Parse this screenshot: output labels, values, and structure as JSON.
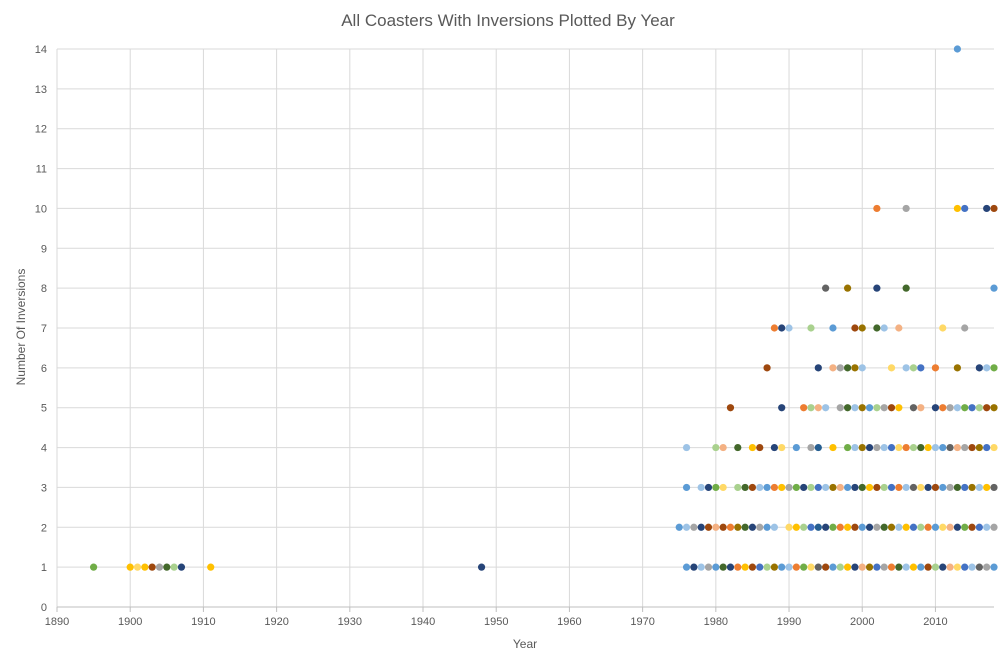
{
  "chart_data": {
    "type": "scatter",
    "title": "All Coasters With Inversions Plotted By Year",
    "xlabel": "Year",
    "ylabel": "Number Of Inversions",
    "xlim": [
      1890,
      2018
    ],
    "ylim": [
      0,
      14
    ],
    "x_ticks": [
      "1890",
      "1900",
      "1910",
      "1920",
      "1930",
      "1940",
      "1950",
      "1960",
      "1970",
      "1980",
      "1990",
      "2000",
      "2010"
    ],
    "y_ticks": [
      "0",
      "1",
      "2",
      "3",
      "4",
      "5",
      "6",
      "7",
      "8",
      "9",
      "10",
      "11",
      "12",
      "13",
      "14"
    ],
    "grid": true,
    "legend": "none",
    "palette": [
      "#5B9BD5",
      "#ED7D31",
      "#A5A5A5",
      "#FFC000",
      "#4472C4",
      "#70AD47",
      "#264478",
      "#9E480E",
      "#636363",
      "#997300",
      "#255E91",
      "#43682B",
      "#9DC3E6",
      "#F4B183",
      "#A9D18E",
      "#FFD966"
    ],
    "points": [
      {
        "x": 1895,
        "y": 1,
        "c": "#70AD47"
      },
      {
        "x": 1900,
        "y": 1,
        "c": "#FFC000"
      },
      {
        "x": 1901,
        "y": 1,
        "c": "#FFD966"
      },
      {
        "x": 1902,
        "y": 1,
        "c": "#FFC000"
      },
      {
        "x": 1903,
        "y": 1,
        "c": "#9E480E"
      },
      {
        "x": 1904,
        "y": 1,
        "c": "#A5A5A5"
      },
      {
        "x": 1905,
        "y": 1,
        "c": "#43682B"
      },
      {
        "x": 1906,
        "y": 1,
        "c": "#A9D18E"
      },
      {
        "x": 1907,
        "y": 1,
        "c": "#264478"
      },
      {
        "x": 1911,
        "y": 1,
        "c": "#FFC000"
      },
      {
        "x": 1948,
        "y": 1,
        "c": "#264478"
      },
      {
        "x": 1976,
        "y": 1,
        "c": "#5B9BD5"
      },
      {
        "x": 1977,
        "y": 1,
        "c": "#264478"
      },
      {
        "x": 1978,
        "y": 1,
        "c": "#9DC3E6"
      },
      {
        "x": 1979,
        "y": 1,
        "c": "#A5A5A5"
      },
      {
        "x": 1980,
        "y": 1,
        "c": "#5B9BD5"
      },
      {
        "x": 1981,
        "y": 1,
        "c": "#43682B"
      },
      {
        "x": 1982,
        "y": 1,
        "c": "#264478"
      },
      {
        "x": 1983,
        "y": 1,
        "c": "#ED7D31"
      },
      {
        "x": 1984,
        "y": 1,
        "c": "#FFC000"
      },
      {
        "x": 1985,
        "y": 1,
        "c": "#9E480E"
      },
      {
        "x": 1986,
        "y": 1,
        "c": "#4472C4"
      },
      {
        "x": 1987,
        "y": 1,
        "c": "#A9D18E"
      },
      {
        "x": 1988,
        "y": 1,
        "c": "#997300"
      },
      {
        "x": 1989,
        "y": 1,
        "c": "#5B9BD5"
      },
      {
        "x": 1990,
        "y": 1,
        "c": "#9DC3E6"
      },
      {
        "x": 1991,
        "y": 1,
        "c": "#ED7D31"
      },
      {
        "x": 1992,
        "y": 1,
        "c": "#70AD47"
      },
      {
        "x": 1993,
        "y": 1,
        "c": "#FFD966"
      },
      {
        "x": 1994,
        "y": 1,
        "c": "#636363"
      },
      {
        "x": 1995,
        "y": 1,
        "c": "#9E480E"
      },
      {
        "x": 1996,
        "y": 1,
        "c": "#5B9BD5"
      },
      {
        "x": 1997,
        "y": 1,
        "c": "#A9D18E"
      },
      {
        "x": 1998,
        "y": 1,
        "c": "#FFC000"
      },
      {
        "x": 1999,
        "y": 1,
        "c": "#264478"
      },
      {
        "x": 2000,
        "y": 1,
        "c": "#F4B183"
      },
      {
        "x": 2001,
        "y": 1,
        "c": "#997300"
      },
      {
        "x": 2002,
        "y": 1,
        "c": "#4472C4"
      },
      {
        "x": 2003,
        "y": 1,
        "c": "#A5A5A5"
      },
      {
        "x": 2004,
        "y": 1,
        "c": "#ED7D31"
      },
      {
        "x": 2005,
        "y": 1,
        "c": "#43682B"
      },
      {
        "x": 2006,
        "y": 1,
        "c": "#9DC3E6"
      },
      {
        "x": 2007,
        "y": 1,
        "c": "#FFC000"
      },
      {
        "x": 2008,
        "y": 1,
        "c": "#5B9BD5"
      },
      {
        "x": 2009,
        "y": 1,
        "c": "#9E480E"
      },
      {
        "x": 2010,
        "y": 1,
        "c": "#A9D18E"
      },
      {
        "x": 2011,
        "y": 1,
        "c": "#264478"
      },
      {
        "x": 2012,
        "y": 1,
        "c": "#F4B183"
      },
      {
        "x": 2013,
        "y": 1,
        "c": "#FFD966"
      },
      {
        "x": 2014,
        "y": 1,
        "c": "#4472C4"
      },
      {
        "x": 2015,
        "y": 1,
        "c": "#9DC3E6"
      },
      {
        "x": 2016,
        "y": 1,
        "c": "#636363"
      },
      {
        "x": 2017,
        "y": 1,
        "c": "#A5A5A5"
      },
      {
        "x": 2018,
        "y": 1,
        "c": "#5B9BD5"
      },
      {
        "x": 1975,
        "y": 2,
        "c": "#5B9BD5"
      },
      {
        "x": 1976,
        "y": 2,
        "c": "#9DC3E6"
      },
      {
        "x": 1977,
        "y": 2,
        "c": "#A5A5A5"
      },
      {
        "x": 1978,
        "y": 2,
        "c": "#264478"
      },
      {
        "x": 1979,
        "y": 2,
        "c": "#9E480E"
      },
      {
        "x": 1980,
        "y": 2,
        "c": "#F4B183"
      },
      {
        "x": 1981,
        "y": 2,
        "c": "#9E480E"
      },
      {
        "x": 1982,
        "y": 2,
        "c": "#ED7D31"
      },
      {
        "x": 1983,
        "y": 2,
        "c": "#997300"
      },
      {
        "x": 1984,
        "y": 2,
        "c": "#43682B"
      },
      {
        "x": 1985,
        "y": 2,
        "c": "#264478"
      },
      {
        "x": 1986,
        "y": 2,
        "c": "#A5A5A5"
      },
      {
        "x": 1987,
        "y": 2,
        "c": "#5B9BD5"
      },
      {
        "x": 1988,
        "y": 2,
        "c": "#9DC3E6"
      },
      {
        "x": 1990,
        "y": 2,
        "c": "#FFD966"
      },
      {
        "x": 1991,
        "y": 2,
        "c": "#FFC000"
      },
      {
        "x": 1992,
        "y": 2,
        "c": "#A9D18E"
      },
      {
        "x": 1993,
        "y": 2,
        "c": "#4472C4"
      },
      {
        "x": 1994,
        "y": 2,
        "c": "#255E91"
      },
      {
        "x": 1995,
        "y": 2,
        "c": "#264478"
      },
      {
        "x": 1996,
        "y": 2,
        "c": "#70AD47"
      },
      {
        "x": 1997,
        "y": 2,
        "c": "#ED7D31"
      },
      {
        "x": 1998,
        "y": 2,
        "c": "#FFC000"
      },
      {
        "x": 1999,
        "y": 2,
        "c": "#9E480E"
      },
      {
        "x": 2000,
        "y": 2,
        "c": "#5B9BD5"
      },
      {
        "x": 2001,
        "y": 2,
        "c": "#264478"
      },
      {
        "x": 2002,
        "y": 2,
        "c": "#A5A5A5"
      },
      {
        "x": 2003,
        "y": 2,
        "c": "#43682B"
      },
      {
        "x": 2004,
        "y": 2,
        "c": "#997300"
      },
      {
        "x": 2005,
        "y": 2,
        "c": "#9DC3E6"
      },
      {
        "x": 2006,
        "y": 2,
        "c": "#FFC000"
      },
      {
        "x": 2007,
        "y": 2,
        "c": "#4472C4"
      },
      {
        "x": 2008,
        "y": 2,
        "c": "#A9D18E"
      },
      {
        "x": 2009,
        "y": 2,
        "c": "#ED7D31"
      },
      {
        "x": 2010,
        "y": 2,
        "c": "#5B9BD5"
      },
      {
        "x": 2011,
        "y": 2,
        "c": "#FFD966"
      },
      {
        "x": 2012,
        "y": 2,
        "c": "#F4B183"
      },
      {
        "x": 2013,
        "y": 2,
        "c": "#264478"
      },
      {
        "x": 2014,
        "y": 2,
        "c": "#70AD47"
      },
      {
        "x": 2015,
        "y": 2,
        "c": "#9E480E"
      },
      {
        "x": 2016,
        "y": 2,
        "c": "#4472C4"
      },
      {
        "x": 2017,
        "y": 2,
        "c": "#9DC3E6"
      },
      {
        "x": 2018,
        "y": 2,
        "c": "#A5A5A5"
      },
      {
        "x": 1976,
        "y": 3,
        "c": "#5B9BD5"
      },
      {
        "x": 1978,
        "y": 3,
        "c": "#9DC3E6"
      },
      {
        "x": 1979,
        "y": 3,
        "c": "#264478"
      },
      {
        "x": 1980,
        "y": 3,
        "c": "#70AD47"
      },
      {
        "x": 1981,
        "y": 3,
        "c": "#FFD966"
      },
      {
        "x": 1983,
        "y": 3,
        "c": "#A9D18E"
      },
      {
        "x": 1984,
        "y": 3,
        "c": "#43682B"
      },
      {
        "x": 1985,
        "y": 3,
        "c": "#9E480E"
      },
      {
        "x": 1986,
        "y": 3,
        "c": "#9DC3E6"
      },
      {
        "x": 1987,
        "y": 3,
        "c": "#5B9BD5"
      },
      {
        "x": 1988,
        "y": 3,
        "c": "#ED7D31"
      },
      {
        "x": 1989,
        "y": 3,
        "c": "#FFC000"
      },
      {
        "x": 1990,
        "y": 3,
        "c": "#A5A5A5"
      },
      {
        "x": 1991,
        "y": 3,
        "c": "#70AD47"
      },
      {
        "x": 1992,
        "y": 3,
        "c": "#264478"
      },
      {
        "x": 1993,
        "y": 3,
        "c": "#A9D18E"
      },
      {
        "x": 1994,
        "y": 3,
        "c": "#4472C4"
      },
      {
        "x": 1995,
        "y": 3,
        "c": "#9DC3E6"
      },
      {
        "x": 1996,
        "y": 3,
        "c": "#997300"
      },
      {
        "x": 1997,
        "y": 3,
        "c": "#F4B183"
      },
      {
        "x": 1998,
        "y": 3,
        "c": "#5B9BD5"
      },
      {
        "x": 1999,
        "y": 3,
        "c": "#264478"
      },
      {
        "x": 2000,
        "y": 3,
        "c": "#43682B"
      },
      {
        "x": 2001,
        "y": 3,
        "c": "#FFC000"
      },
      {
        "x": 2002,
        "y": 3,
        "c": "#9E480E"
      },
      {
        "x": 2003,
        "y": 3,
        "c": "#A9D18E"
      },
      {
        "x": 2004,
        "y": 3,
        "c": "#4472C4"
      },
      {
        "x": 2005,
        "y": 3,
        "c": "#ED7D31"
      },
      {
        "x": 2006,
        "y": 3,
        "c": "#9DC3E6"
      },
      {
        "x": 2007,
        "y": 3,
        "c": "#636363"
      },
      {
        "x": 2008,
        "y": 3,
        "c": "#FFD966"
      },
      {
        "x": 2009,
        "y": 3,
        "c": "#264478"
      },
      {
        "x": 2010,
        "y": 3,
        "c": "#9E480E"
      },
      {
        "x": 2011,
        "y": 3,
        "c": "#5B9BD5"
      },
      {
        "x": 2012,
        "y": 3,
        "c": "#A5A5A5"
      },
      {
        "x": 2013,
        "y": 3,
        "c": "#43682B"
      },
      {
        "x": 2014,
        "y": 3,
        "c": "#4472C4"
      },
      {
        "x": 2015,
        "y": 3,
        "c": "#997300"
      },
      {
        "x": 2016,
        "y": 3,
        "c": "#9DC3E6"
      },
      {
        "x": 2017,
        "y": 3,
        "c": "#FFC000"
      },
      {
        "x": 2018,
        "y": 3,
        "c": "#636363"
      },
      {
        "x": 1976,
        "y": 4,
        "c": "#9DC3E6"
      },
      {
        "x": 1980,
        "y": 4,
        "c": "#A9D18E"
      },
      {
        "x": 1981,
        "y": 4,
        "c": "#F4B183"
      },
      {
        "x": 1983,
        "y": 4,
        "c": "#43682B"
      },
      {
        "x": 1985,
        "y": 4,
        "c": "#FFC000"
      },
      {
        "x": 1986,
        "y": 4,
        "c": "#9E480E"
      },
      {
        "x": 1988,
        "y": 4,
        "c": "#264478"
      },
      {
        "x": 1989,
        "y": 4,
        "c": "#FFD966"
      },
      {
        "x": 1991,
        "y": 4,
        "c": "#5B9BD5"
      },
      {
        "x": 1993,
        "y": 4,
        "c": "#A5A5A5"
      },
      {
        "x": 1994,
        "y": 4,
        "c": "#255E91"
      },
      {
        "x": 1996,
        "y": 4,
        "c": "#FFC000"
      },
      {
        "x": 1998,
        "y": 4,
        "c": "#70AD47"
      },
      {
        "x": 1999,
        "y": 4,
        "c": "#9DC3E6"
      },
      {
        "x": 2000,
        "y": 4,
        "c": "#997300"
      },
      {
        "x": 2001,
        "y": 4,
        "c": "#264478"
      },
      {
        "x": 2002,
        "y": 4,
        "c": "#A5A5A5"
      },
      {
        "x": 2003,
        "y": 4,
        "c": "#9DC3E6"
      },
      {
        "x": 2004,
        "y": 4,
        "c": "#4472C4"
      },
      {
        "x": 2005,
        "y": 4,
        "c": "#FFD966"
      },
      {
        "x": 2006,
        "y": 4,
        "c": "#ED7D31"
      },
      {
        "x": 2007,
        "y": 4,
        "c": "#A9D18E"
      },
      {
        "x": 2008,
        "y": 4,
        "c": "#43682B"
      },
      {
        "x": 2009,
        "y": 4,
        "c": "#FFC000"
      },
      {
        "x": 2010,
        "y": 4,
        "c": "#9DC3E6"
      },
      {
        "x": 2011,
        "y": 4,
        "c": "#5B9BD5"
      },
      {
        "x": 2012,
        "y": 4,
        "c": "#636363"
      },
      {
        "x": 2013,
        "y": 4,
        "c": "#F4B183"
      },
      {
        "x": 2014,
        "y": 4,
        "c": "#A5A5A5"
      },
      {
        "x": 2015,
        "y": 4,
        "c": "#9E480E"
      },
      {
        "x": 2016,
        "y": 4,
        "c": "#997300"
      },
      {
        "x": 2017,
        "y": 4,
        "c": "#4472C4"
      },
      {
        "x": 2018,
        "y": 4,
        "c": "#FFD966"
      },
      {
        "x": 1982,
        "y": 5,
        "c": "#9E480E"
      },
      {
        "x": 1989,
        "y": 5,
        "c": "#264478"
      },
      {
        "x": 1992,
        "y": 5,
        "c": "#ED7D31"
      },
      {
        "x": 1993,
        "y": 5,
        "c": "#A9D18E"
      },
      {
        "x": 1994,
        "y": 5,
        "c": "#F4B183"
      },
      {
        "x": 1995,
        "y": 5,
        "c": "#9DC3E6"
      },
      {
        "x": 1997,
        "y": 5,
        "c": "#A5A5A5"
      },
      {
        "x": 1998,
        "y": 5,
        "c": "#43682B"
      },
      {
        "x": 1999,
        "y": 5,
        "c": "#9DC3E6"
      },
      {
        "x": 2000,
        "y": 5,
        "c": "#997300"
      },
      {
        "x": 2001,
        "y": 5,
        "c": "#5B9BD5"
      },
      {
        "x": 2002,
        "y": 5,
        "c": "#A9D18E"
      },
      {
        "x": 2003,
        "y": 5,
        "c": "#A5A5A5"
      },
      {
        "x": 2004,
        "y": 5,
        "c": "#9E480E"
      },
      {
        "x": 2005,
        "y": 5,
        "c": "#FFC000"
      },
      {
        "x": 2007,
        "y": 5,
        "c": "#636363"
      },
      {
        "x": 2008,
        "y": 5,
        "c": "#F4B183"
      },
      {
        "x": 2010,
        "y": 5,
        "c": "#264478"
      },
      {
        "x": 2011,
        "y": 5,
        "c": "#ED7D31"
      },
      {
        "x": 2012,
        "y": 5,
        "c": "#A5A5A5"
      },
      {
        "x": 2013,
        "y": 5,
        "c": "#9DC3E6"
      },
      {
        "x": 2014,
        "y": 5,
        "c": "#70AD47"
      },
      {
        "x": 2015,
        "y": 5,
        "c": "#4472C4"
      },
      {
        "x": 2016,
        "y": 5,
        "c": "#A9D18E"
      },
      {
        "x": 2017,
        "y": 5,
        "c": "#9E480E"
      },
      {
        "x": 2018,
        "y": 5,
        "c": "#997300"
      },
      {
        "x": 1987,
        "y": 6,
        "c": "#9E480E"
      },
      {
        "x": 1994,
        "y": 6,
        "c": "#264478"
      },
      {
        "x": 1996,
        "y": 6,
        "c": "#F4B183"
      },
      {
        "x": 1997,
        "y": 6,
        "c": "#A5A5A5"
      },
      {
        "x": 1998,
        "y": 6,
        "c": "#43682B"
      },
      {
        "x": 1999,
        "y": 6,
        "c": "#997300"
      },
      {
        "x": 2000,
        "y": 6,
        "c": "#9DC3E6"
      },
      {
        "x": 2004,
        "y": 6,
        "c": "#FFD966"
      },
      {
        "x": 2006,
        "y": 6,
        "c": "#9DC3E6"
      },
      {
        "x": 2007,
        "y": 6,
        "c": "#A9D18E"
      },
      {
        "x": 2008,
        "y": 6,
        "c": "#4472C4"
      },
      {
        "x": 2010,
        "y": 6,
        "c": "#ED7D31"
      },
      {
        "x": 2013,
        "y": 6,
        "c": "#997300"
      },
      {
        "x": 2016,
        "y": 6,
        "c": "#264478"
      },
      {
        "x": 2017,
        "y": 6,
        "c": "#9DC3E6"
      },
      {
        "x": 2018,
        "y": 6,
        "c": "#70AD47"
      },
      {
        "x": 1988,
        "y": 7,
        "c": "#ED7D31"
      },
      {
        "x": 1989,
        "y": 7,
        "c": "#264478"
      },
      {
        "x": 1990,
        "y": 7,
        "c": "#9DC3E6"
      },
      {
        "x": 1993,
        "y": 7,
        "c": "#A9D18E"
      },
      {
        "x": 1996,
        "y": 7,
        "c": "#5B9BD5"
      },
      {
        "x": 1999,
        "y": 7,
        "c": "#9E480E"
      },
      {
        "x": 2000,
        "y": 7,
        "c": "#997300"
      },
      {
        "x": 2002,
        "y": 7,
        "c": "#43682B"
      },
      {
        "x": 2003,
        "y": 7,
        "c": "#9DC3E6"
      },
      {
        "x": 2005,
        "y": 7,
        "c": "#F4B183"
      },
      {
        "x": 2011,
        "y": 7,
        "c": "#FFD966"
      },
      {
        "x": 2014,
        "y": 7,
        "c": "#A5A5A5"
      },
      {
        "x": 1995,
        "y": 8,
        "c": "#636363"
      },
      {
        "x": 1998,
        "y": 8,
        "c": "#997300"
      },
      {
        "x": 2002,
        "y": 8,
        "c": "#264478"
      },
      {
        "x": 2006,
        "y": 8,
        "c": "#43682B"
      },
      {
        "x": 2018,
        "y": 8,
        "c": "#5B9BD5"
      },
      {
        "x": 2002,
        "y": 10,
        "c": "#ED7D31"
      },
      {
        "x": 2006,
        "y": 10,
        "c": "#A5A5A5"
      },
      {
        "x": 2013,
        "y": 10,
        "c": "#FFC000"
      },
      {
        "x": 2014,
        "y": 10,
        "c": "#4472C4"
      },
      {
        "x": 2017,
        "y": 10,
        "c": "#264478"
      },
      {
        "x": 2018,
        "y": 10,
        "c": "#9E480E"
      },
      {
        "x": 2013,
        "y": 14,
        "c": "#5B9BD5"
      }
    ]
  }
}
